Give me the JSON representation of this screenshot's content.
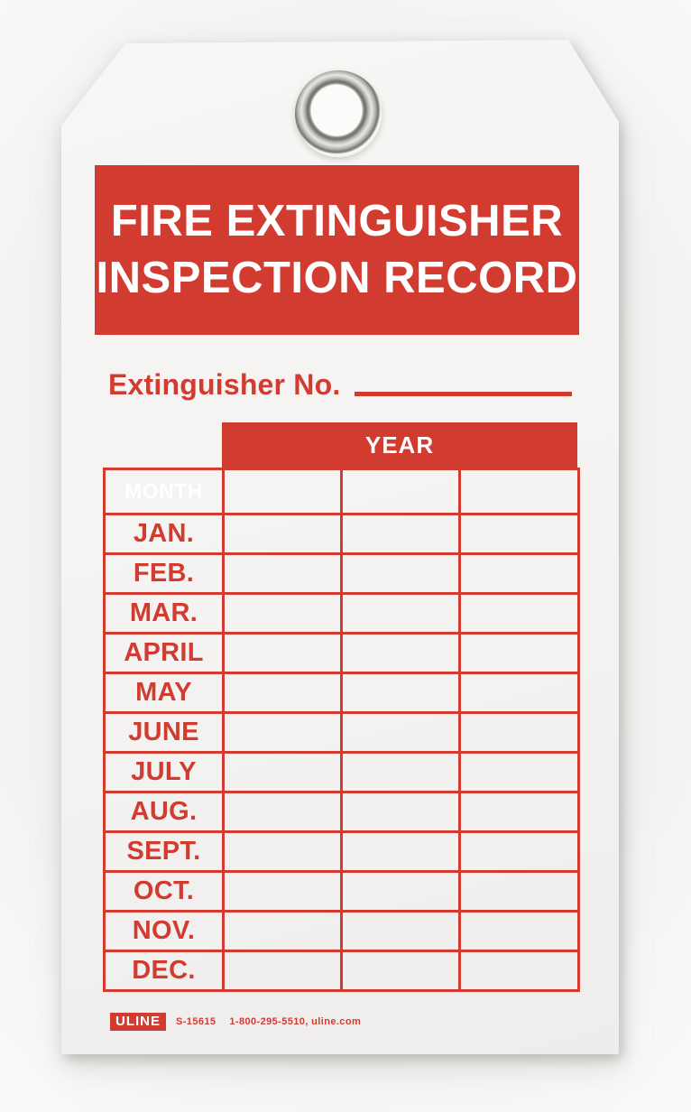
{
  "tag": {
    "title_line1": "FIRE EXTINGUISHER",
    "title_line2": "INSPECTION RECORD",
    "extinguisher_no_label": "Extinguisher No.",
    "extinguisher_no_value": "",
    "table": {
      "year_header": "YEAR",
      "month_header": "MONTH",
      "year_values": [
        "",
        "",
        ""
      ],
      "months": [
        "JAN.",
        "FEB.",
        "MAR.",
        "APRIL",
        "MAY",
        "JUNE",
        "JULY",
        "AUG.",
        "SEPT.",
        "OCT.",
        "NOV.",
        "DEC."
      ]
    },
    "footer": {
      "brand": "ULINE",
      "part_number": "S-15615",
      "phone_site": "1-800-295-5510, uline.com"
    },
    "colors": {
      "red": "#d23b30",
      "paper": "#f5f4f2",
      "grommet_metal": "#b4b3ac"
    }
  }
}
